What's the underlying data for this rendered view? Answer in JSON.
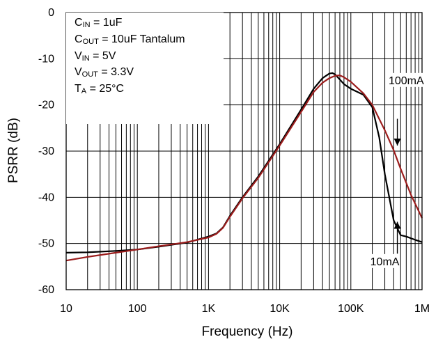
{
  "chart_data": {
    "type": "line",
    "xlabel": "Frequency (Hz)",
    "ylabel": "PSRR (dB)",
    "x_scale": "log",
    "xlim": [
      10,
      1000000
    ],
    "ylim": [
      -60,
      0
    ],
    "grid": true,
    "x_ticks": [
      {
        "value": 10,
        "label": "10"
      },
      {
        "value": 100,
        "label": "100"
      },
      {
        "value": 1000,
        "label": "1K"
      },
      {
        "value": 10000,
        "label": "10K"
      },
      {
        "value": 100000,
        "label": "100K"
      },
      {
        "value": 1000000,
        "label": "1M"
      }
    ],
    "y_ticks": [
      {
        "value": 0,
        "label": "0"
      },
      {
        "value": -10,
        "label": "-10"
      },
      {
        "value": -20,
        "label": "-20"
      },
      {
        "value": -30,
        "label": "-30"
      },
      {
        "value": -40,
        "label": "-40"
      },
      {
        "value": -50,
        "label": "-50"
      },
      {
        "value": -60,
        "label": "-60"
      }
    ],
    "conditions": [
      {
        "main": "C",
        "sub": "IN",
        "rest": " = 1uF"
      },
      {
        "main": "C",
        "sub": "OUT",
        "rest": " = 10uF Tantalum"
      },
      {
        "main": "V",
        "sub": "IN",
        "rest": " = 5V"
      },
      {
        "main": "V",
        "sub": "OUT",
        "rest": " = 3.3V"
      },
      {
        "main": "T",
        "sub": "A",
        "rest": " = 25°C"
      }
    ],
    "series": [
      {
        "color": "#000000",
        "x": [
          10,
          20,
          50,
          100,
          200,
          500,
          1000,
          1300,
          1600,
          2000,
          3000,
          5000,
          10000,
          20000,
          30000,
          40000,
          50000,
          55000,
          60000,
          70000,
          80000,
          100000,
          150000,
          200000,
          250000,
          300000,
          400000,
          500000,
          600000,
          800000,
          1000000
        ],
        "y": [
          -52,
          -51.9,
          -51.6,
          -51.3,
          -50.7,
          -49.8,
          -48.5,
          -47.8,
          -46.5,
          -44,
          -40,
          -35.5,
          -28.5,
          -21,
          -16.5,
          -14.2,
          -13.2,
          -13.1,
          -13.4,
          -14.5,
          -15.5,
          -16.5,
          -17.8,
          -20.5,
          -27,
          -35,
          -45,
          -48.2,
          -48.5,
          -49.2,
          -49.7
        ]
      },
      {
        "color": "#9b1c1c",
        "x": [
          10,
          20,
          50,
          100,
          200,
          500,
          1000,
          1300,
          1600,
          2000,
          3000,
          5000,
          10000,
          20000,
          30000,
          40000,
          50000,
          60000,
          70000,
          80000,
          100000,
          150000,
          200000,
          300000,
          400000,
          500000,
          700000,
          1000000
        ],
        "y": [
          -53.7,
          -52.9,
          -52,
          -51.3,
          -50.6,
          -49.7,
          -48.7,
          -47.9,
          -46.6,
          -44.2,
          -40.2,
          -35.8,
          -28.8,
          -21.5,
          -17.2,
          -15.2,
          -14.2,
          -13.7,
          -13.6,
          -14,
          -15,
          -17.5,
          -20,
          -25.5,
          -29.8,
          -33.8,
          -39.5,
          -44.5
        ]
      }
    ],
    "annotations": [
      {
        "text": "100mA",
        "x": 600000,
        "y": -15.2,
        "arrow_x": 450000,
        "arrow_from": -23,
        "arrow_to": -28.8,
        "direction": "down"
      },
      {
        "text": "10mA",
        "x": 300000,
        "y": -54.4,
        "arrow_x": 450000,
        "arrow_from": -52.2,
        "arrow_to": -45.3,
        "direction": "up"
      }
    ]
  }
}
